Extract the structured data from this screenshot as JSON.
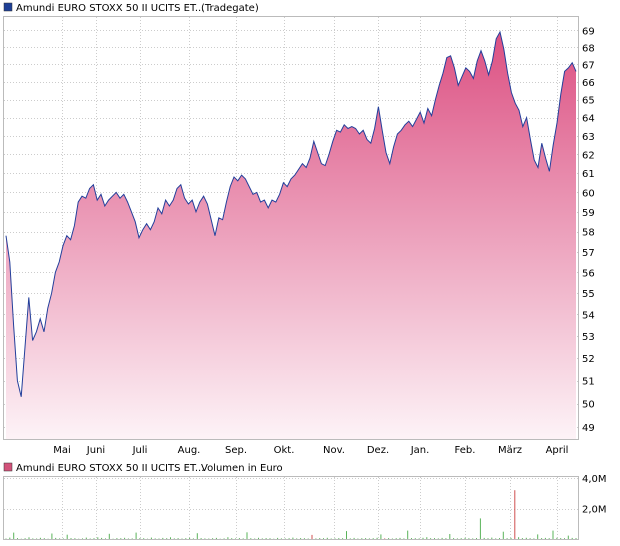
{
  "price_panel": {
    "legend_label": "Amundi EURO STOXX 50 II UCITS ET...",
    "legend_suffix": "(Tradegate)",
    "legend_color": "#1e3f96"
  },
  "volume_panel": {
    "legend_label": "Amundi EURO STOXX 50 II UCITS ET...",
    "legend_suffix": "Volumen in Euro",
    "legend_color": "#d2527a"
  },
  "colors": {
    "line": "#233f9b",
    "fill_top": "#dc5082",
    "fill_bottom": "#fdf3f7",
    "grid": "#cccccc",
    "volume_bar_up": "#5ab45a",
    "volume_bar_down": "#d05050"
  },
  "chart_data": [
    {
      "type": "area",
      "x_tick_labels": [
        "Mai",
        "Juni",
        "Juli",
        "Aug.",
        "Sep.",
        "Okt.",
        "Nov.",
        "Dez.",
        "Jan.",
        "Feb.",
        "März",
        "April"
      ],
      "y_tick_labels": [
        "49",
        "50",
        "51",
        "52",
        "53",
        "54",
        "55",
        "56",
        "57",
        "58",
        "59",
        "60",
        "61",
        "62",
        "63",
        "64",
        "65",
        "66",
        "67",
        "68",
        "69"
      ],
      "y_scale": "log",
      "ylim": [
        48.5,
        69.8
      ],
      "grid": true,
      "series": [
        {
          "values": [
            57.8,
            56.5,
            53.5,
            51.0,
            50.3,
            52.5,
            54.8,
            52.8,
            53.2,
            53.8,
            53.2,
            54.3,
            55.0,
            56.0,
            56.5,
            57.3,
            57.8,
            57.6,
            58.3,
            59.5,
            59.8,
            59.7,
            60.2,
            60.4,
            59.6,
            59.9,
            59.3,
            59.6,
            59.8,
            60.0,
            59.7,
            59.9,
            59.5,
            59.0,
            58.5,
            57.7,
            58.1,
            58.4,
            58.1,
            58.5,
            59.2,
            58.9,
            59.6,
            59.3,
            59.6,
            60.2,
            60.4,
            59.7,
            59.4,
            59.6,
            59.0,
            59.5,
            59.8,
            59.4,
            58.6,
            57.8,
            58.7,
            58.6,
            59.5,
            60.3,
            60.8,
            60.6,
            60.9,
            60.7,
            60.3,
            59.9,
            60.0,
            59.5,
            59.6,
            59.2,
            59.6,
            59.5,
            59.9,
            60.5,
            60.3,
            60.7,
            60.9,
            61.2,
            61.5,
            61.3,
            61.8,
            62.7,
            62.1,
            61.5,
            61.4,
            62.0,
            62.7,
            63.3,
            63.2,
            63.6,
            63.4,
            63.5,
            63.4,
            63.1,
            63.3,
            62.8,
            62.6,
            63.4,
            64.6,
            63.3,
            62.1,
            61.5,
            62.4,
            63.1,
            63.3,
            63.6,
            63.8,
            63.5,
            63.9,
            64.3,
            63.7,
            64.5,
            64.1,
            65.0,
            65.8,
            66.5,
            67.4,
            67.5,
            66.8,
            65.8,
            66.3,
            66.8,
            66.6,
            66.2,
            67.2,
            67.8,
            67.2,
            66.4,
            67.2,
            68.5,
            68.9,
            67.9,
            66.5,
            65.4,
            64.8,
            64.4,
            63.5,
            64.0,
            62.8,
            61.7,
            61.3,
            62.6,
            61.8,
            61.1,
            62.5,
            63.7,
            65.3,
            66.6,
            66.8,
            67.1,
            66.6
          ]
        }
      ]
    },
    {
      "type": "bar",
      "y_tick_labels": [
        "4,0M",
        "2,0M"
      ],
      "ylim": [
        0,
        4.0
      ],
      "grid": true,
      "series": [
        {
          "values": [
            0.03,
            0.09,
            0.42,
            0.06,
            0.02,
            0.05,
            0.11,
            0.04,
            0.03,
            0.08,
            0.05,
            0.02,
            0.36,
            0.07,
            0.04,
            0.03,
            0.28,
            0.06,
            0.05,
            0.02,
            0.04,
            0.09,
            0.03,
            0.05,
            0.11,
            0.07,
            0.04,
            0.34,
            0.02,
            0.06,
            0.05,
            0.08,
            0.03,
            0.04,
            0.42,
            0.06,
            0.05,
            0.02,
            0.09,
            0.04,
            0.03,
            0.07,
            0.05,
            0.11,
            0.04,
            0.06,
            0.03,
            0.05,
            0.08,
            0.04,
            0.38,
            0.06,
            0.04,
            0.03,
            0.05,
            0.07,
            0.02,
            0.04,
            0.12,
            0.05,
            0.03,
            0.06,
            0.04,
            0.44,
            0.05,
            0.03,
            0.08,
            0.04,
            0.06,
            0.05,
            0.02,
            0.07,
            0.04,
            0.03,
            0.05,
            0.09,
            0.04,
            0.06,
            0.05,
            0.03,
            0.27,
            0.04,
            0.06,
            0.05,
            0.08,
            0.03,
            0.04,
            0.06,
            0.05,
            0.52,
            0.04,
            0.07,
            0.03,
            0.05,
            0.06,
            0.04,
            0.05,
            0.08,
            0.3,
            0.04,
            0.06,
            0.03,
            0.05,
            0.07,
            0.04,
            0.55,
            0.06,
            0.05,
            0.04,
            0.08,
            0.12,
            0.05,
            0.06,
            0.04,
            0.07,
            0.05,
            0.33,
            0.06,
            0.04,
            0.05,
            0.08,
            0.05,
            0.04,
            0.06,
            1.35,
            0.07,
            0.05,
            0.09,
            0.04,
            0.06,
            0.48,
            0.05,
            0.07,
            3.2,
            0.12,
            0.06,
            0.08,
            0.05,
            0.04,
            0.3,
            0.06,
            0.07,
            0.05,
            0.55,
            0.08,
            0.06,
            0.05,
            0.22,
            0.07,
            0.06
          ],
          "down_days": [
            80,
            99,
            133
          ]
        }
      ]
    }
  ]
}
